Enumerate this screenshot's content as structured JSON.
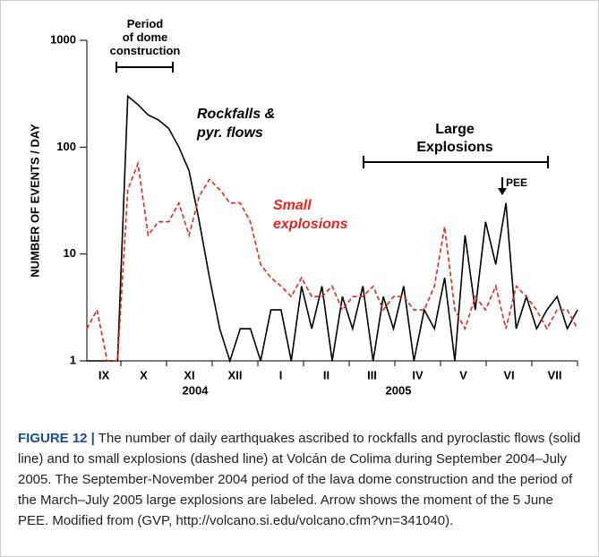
{
  "chart_data": {
    "type": "line",
    "y_label": "NUMBER OF EVENTS / DAY",
    "log_y": true,
    "ylim": [
      1,
      1000
    ],
    "yticks": [
      1,
      10,
      100,
      1000
    ],
    "months": [
      "IX",
      "X",
      "XI",
      "XII",
      "I",
      "II",
      "III",
      "IV",
      "V",
      "VI",
      "VII"
    ],
    "years": [
      "2004",
      "2005"
    ],
    "annotations": {
      "dome": "Period of dome construction",
      "explosions": "Large Explosions",
      "pee": "PEE",
      "rockfalls": "Rockfalls & pyr. flows",
      "small": "Small explosions"
    },
    "series": [
      {
        "name": "Rockfalls & pyr. flows",
        "color": "#000000",
        "dash": false,
        "values": [
          1,
          1,
          1,
          1,
          300,
          250,
          200,
          180,
          150,
          100,
          60,
          20,
          6,
          2,
          1,
          2,
          2,
          1,
          3,
          3,
          1,
          5,
          2,
          5,
          1,
          4,
          2,
          5,
          1,
          4,
          2,
          5,
          1,
          3,
          2,
          6,
          1,
          15,
          3,
          20,
          8,
          30,
          2,
          4,
          2,
          3,
          4,
          2,
          3
        ]
      },
      {
        "name": "Small explosions",
        "color": "#e8231c",
        "dash": true,
        "values": [
          2,
          3,
          1,
          1,
          40,
          70,
          15,
          20,
          20,
          30,
          15,
          35,
          50,
          40,
          30,
          30,
          20,
          8,
          6,
          5,
          4,
          6,
          4,
          4,
          5,
          3,
          4,
          4,
          5,
          3,
          4,
          4,
          3,
          3,
          5,
          18,
          3,
          2,
          4,
          3,
          5,
          2,
          5,
          4,
          3,
          2,
          3,
          3,
          2
        ]
      }
    ]
  },
  "caption": {
    "label": "FIGURE 12 |",
    "text": "The number of daily earthquakes ascribed to rockfalls and pyroclastic flows (solid line) and to small explosions (dashed line) at Volcán de Colima during September 2004–July 2005. The September-November 2004 period of the lava dome construction and the period of the March–July 2005 large explosions are labeled. Arrow shows the moment of the 5 June PEE. Modified from (GVP, http://volcano.si.edu/volcano.cfm?vn=341040)."
  }
}
